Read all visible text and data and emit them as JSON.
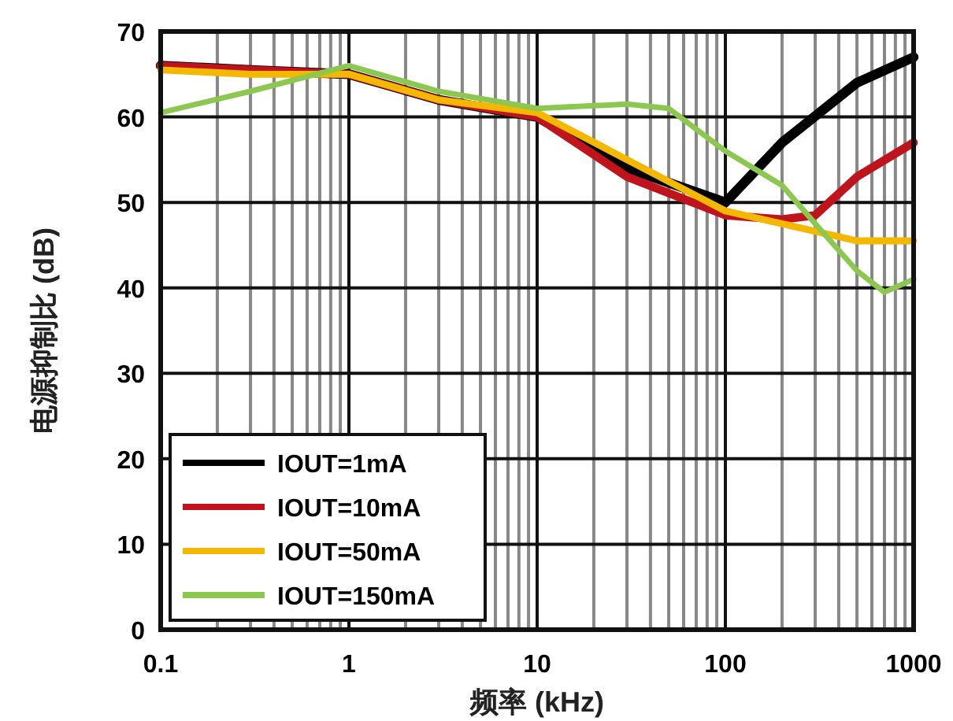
{
  "chart_data": {
    "type": "line",
    "xlabel": "频率 (kHz)",
    "ylabel": "电源抑制比 (dB)",
    "log": "x",
    "xlim": [
      0.1,
      1000
    ],
    "xticks": [
      0.1,
      1,
      10,
      100,
      1000
    ],
    "ylim": [
      0,
      70
    ],
    "yticks": [
      0,
      10,
      20,
      30,
      40,
      50,
      60,
      70
    ],
    "grid": true,
    "legend": "bottom left",
    "marker": "none",
    "line_style": "solid",
    "series": [
      {
        "name": "IOUT=1mA",
        "color": "#000000",
        "x": [
          0.1,
          0.3,
          1,
          3,
          10,
          30,
          100,
          200,
          500,
          1000
        ],
        "values": [
          66,
          65.5,
          65,
          62,
          60,
          54,
          50,
          57,
          64,
          67
        ]
      },
      {
        "name": "IOUT=10mA",
        "color": "#c0141c",
        "x": [
          0.1,
          0.3,
          1,
          3,
          10,
          30,
          100,
          200,
          300,
          500,
          1000
        ],
        "values": [
          66,
          65.5,
          65,
          62,
          60,
          53,
          48.5,
          48,
          48.5,
          53,
          57
        ]
      },
      {
        "name": "IOUT=50mA",
        "color": "#f5b800",
        "x": [
          0.1,
          0.3,
          1,
          3,
          10,
          30,
          100,
          200,
          500,
          1000
        ],
        "values": [
          65.5,
          65,
          65,
          62,
          60.5,
          55,
          49,
          47.5,
          45.5,
          45.5
        ]
      },
      {
        "name": "IOUT=150mA",
        "color": "#8cc850",
        "x": [
          0.1,
          0.3,
          1,
          3,
          10,
          30,
          50,
          100,
          200,
          300,
          500,
          700,
          1000
        ],
        "values": [
          60.5,
          63,
          66,
          63,
          61,
          61.5,
          61,
          56,
          52,
          47.5,
          42,
          39.5,
          41
        ]
      }
    ]
  }
}
